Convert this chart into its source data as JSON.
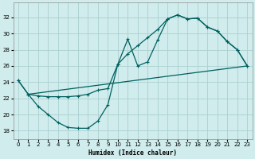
{
  "xlabel": "Humidex (Indice chaleur)",
  "xlim": [
    -0.5,
    23.5
  ],
  "ylim": [
    17.0,
    33.8
  ],
  "xticks": [
    0,
    1,
    2,
    3,
    4,
    5,
    6,
    7,
    8,
    9,
    10,
    11,
    12,
    13,
    14,
    15,
    16,
    17,
    18,
    19,
    20,
    21,
    22,
    23
  ],
  "yticks": [
    18,
    20,
    22,
    24,
    26,
    28,
    30,
    32
  ],
  "bg_color": "#d0ecec",
  "line_color": "#006060",
  "grid_color": "#aad0d0",
  "curve1_x": [
    0,
    1,
    2,
    3,
    4,
    5,
    6,
    7,
    8,
    9,
    10,
    11,
    12,
    13,
    14,
    15,
    16,
    17,
    18,
    19,
    20,
    21,
    22,
    23
  ],
  "curve1_y": [
    24.2,
    22.5,
    22.3,
    22.2,
    22.2,
    22.2,
    22.3,
    22.5,
    23.0,
    23.2,
    26.2,
    27.5,
    28.5,
    29.5,
    30.5,
    31.8,
    32.3,
    31.8,
    31.9,
    30.8,
    30.3,
    29.0,
    28.0,
    26.0
  ],
  "curve2_x": [
    0,
    1,
    2,
    3,
    4,
    5,
    6,
    7,
    8,
    9,
    10,
    11,
    12,
    13,
    14,
    15,
    16,
    17,
    18,
    19,
    20,
    21,
    22,
    23
  ],
  "curve2_y": [
    24.2,
    22.5,
    21.0,
    20.0,
    19.0,
    18.4,
    18.3,
    18.3,
    19.2,
    21.2,
    26.2,
    29.3,
    26.0,
    26.5,
    29.2,
    31.8,
    32.3,
    31.8,
    31.9,
    30.8,
    30.3,
    29.0,
    28.0,
    26.0
  ],
  "curve3_x": [
    1,
    23
  ],
  "curve3_y": [
    22.5,
    26.0
  ]
}
